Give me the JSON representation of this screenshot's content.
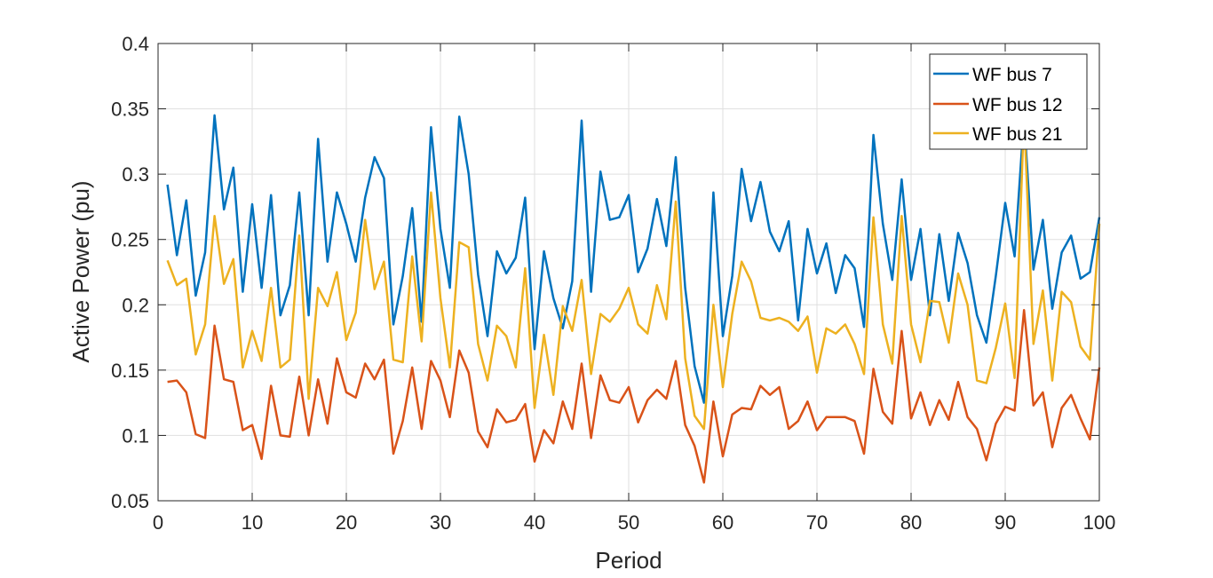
{
  "chart_data": {
    "type": "line",
    "xlabel": "Period",
    "ylabel": "Active Power (pu)",
    "xlim": [
      0,
      100
    ],
    "ylim": [
      0.05,
      0.4
    ],
    "xticks": [
      0,
      10,
      20,
      30,
      40,
      50,
      60,
      70,
      80,
      90,
      100
    ],
    "yticks": [
      "0.05",
      "0.1",
      "0.15",
      "0.2",
      "0.25",
      "0.3",
      "0.35",
      "0.4"
    ],
    "grid": true,
    "legend_position": "top-right",
    "x": [
      1,
      2,
      3,
      4,
      5,
      6,
      7,
      8,
      9,
      10,
      11,
      12,
      13,
      14,
      15,
      16,
      17,
      18,
      19,
      20,
      21,
      22,
      23,
      24,
      25,
      26,
      27,
      28,
      29,
      30,
      31,
      32,
      33,
      34,
      35,
      36,
      37,
      38,
      39,
      40,
      41,
      42,
      43,
      44,
      45,
      46,
      47,
      48,
      49,
      50,
      51,
      52,
      53,
      54,
      55,
      56,
      57,
      58,
      59,
      60,
      61,
      62,
      63,
      64,
      65,
      66,
      67,
      68,
      69,
      70,
      71,
      72,
      73,
      74,
      75,
      76,
      77,
      78,
      79,
      80,
      81,
      82,
      83,
      84,
      85,
      86,
      87,
      88,
      89,
      90,
      91,
      92,
      93,
      94,
      95,
      96,
      97,
      98,
      99,
      100
    ],
    "series": [
      {
        "name": "WF bus 7",
        "color": "#0072BD",
        "values": [
          0.292,
          0.238,
          0.28,
          0.207,
          0.24,
          0.345,
          0.273,
          0.305,
          0.21,
          0.277,
          0.213,
          0.284,
          0.192,
          0.215,
          0.286,
          0.192,
          0.327,
          0.233,
          0.286,
          0.262,
          0.233,
          0.282,
          0.313,
          0.297,
          0.185,
          0.222,
          0.274,
          0.187,
          0.336,
          0.258,
          0.213,
          0.344,
          0.3,
          0.223,
          0.176,
          0.241,
          0.224,
          0.236,
          0.282,
          0.166,
          0.241,
          0.205,
          0.182,
          0.218,
          0.341,
          0.21,
          0.302,
          0.265,
          0.267,
          0.284,
          0.225,
          0.243,
          0.281,
          0.245,
          0.313,
          0.213,
          0.153,
          0.125,
          0.286,
          0.176,
          0.222,
          0.304,
          0.264,
          0.294,
          0.256,
          0.241,
          0.264,
          0.188,
          0.258,
          0.224,
          0.247,
          0.209,
          0.238,
          0.228,
          0.183,
          0.33,
          0.262,
          0.219,
          0.296,
          0.219,
          0.258,
          0.192,
          0.254,
          0.203,
          0.255,
          0.232,
          0.192,
          0.171,
          0.222,
          0.278,
          0.237,
          0.344,
          0.227,
          0.265,
          0.197,
          0.24,
          0.253,
          0.22,
          0.225,
          0.267
        ]
      },
      {
        "name": "WF bus 12",
        "color": "#D95319",
        "values": [
          0.141,
          0.142,
          0.133,
          0.101,
          0.098,
          0.184,
          0.143,
          0.141,
          0.104,
          0.108,
          0.082,
          0.138,
          0.1,
          0.099,
          0.145,
          0.1,
          0.143,
          0.109,
          0.159,
          0.133,
          0.129,
          0.155,
          0.143,
          0.158,
          0.086,
          0.111,
          0.152,
          0.105,
          0.157,
          0.142,
          0.114,
          0.165,
          0.148,
          0.103,
          0.091,
          0.12,
          0.11,
          0.112,
          0.124,
          0.08,
          0.104,
          0.094,
          0.126,
          0.105,
          0.155,
          0.098,
          0.146,
          0.127,
          0.125,
          0.137,
          0.11,
          0.127,
          0.135,
          0.128,
          0.157,
          0.108,
          0.092,
          0.064,
          0.126,
          0.084,
          0.116,
          0.121,
          0.12,
          0.138,
          0.131,
          0.137,
          0.105,
          0.111,
          0.126,
          0.104,
          0.114,
          0.114,
          0.114,
          0.111,
          0.086,
          0.151,
          0.118,
          0.109,
          0.18,
          0.113,
          0.133,
          0.108,
          0.127,
          0.112,
          0.141,
          0.114,
          0.105,
          0.081,
          0.109,
          0.122,
          0.119,
          0.196,
          0.123,
          0.133,
          0.091,
          0.121,
          0.131,
          0.113,
          0.097,
          0.152
        ]
      },
      {
        "name": "WF bus 21",
        "color": "#EDB120",
        "values": [
          0.234,
          0.215,
          0.22,
          0.162,
          0.185,
          0.268,
          0.216,
          0.235,
          0.152,
          0.18,
          0.157,
          0.213,
          0.152,
          0.158,
          0.253,
          0.128,
          0.213,
          0.199,
          0.225,
          0.173,
          0.194,
          0.265,
          0.212,
          0.233,
          0.158,
          0.156,
          0.237,
          0.172,
          0.286,
          0.205,
          0.152,
          0.248,
          0.244,
          0.17,
          0.142,
          0.184,
          0.176,
          0.152,
          0.228,
          0.121,
          0.177,
          0.131,
          0.199,
          0.18,
          0.219,
          0.147,
          0.193,
          0.187,
          0.197,
          0.213,
          0.185,
          0.178,
          0.215,
          0.189,
          0.279,
          0.159,
          0.115,
          0.105,
          0.2,
          0.137,
          0.193,
          0.233,
          0.218,
          0.19,
          0.188,
          0.19,
          0.187,
          0.18,
          0.191,
          0.148,
          0.182,
          0.178,
          0.185,
          0.17,
          0.147,
          0.267,
          0.185,
          0.155,
          0.268,
          0.185,
          0.156,
          0.203,
          0.202,
          0.171,
          0.224,
          0.2,
          0.142,
          0.14,
          0.167,
          0.201,
          0.144,
          0.345,
          0.17,
          0.211,
          0.142,
          0.21,
          0.202,
          0.168,
          0.158,
          0.262
        ]
      }
    ]
  }
}
